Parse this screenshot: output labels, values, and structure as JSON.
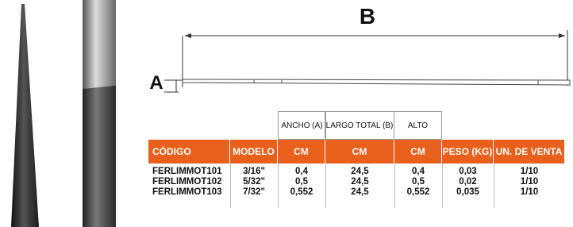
{
  "diagram": {
    "label_b": "B",
    "label_a": "A"
  },
  "table": {
    "top_headers": [
      "ANCHO (A)",
      "LARGO TOTAL (B)",
      "ALTO"
    ],
    "headers": [
      "CÓDIGO",
      "MODELO",
      "CM",
      "CM",
      "CM",
      "PESO (KG)",
      "UN. DE VENTA"
    ],
    "rows": [
      [
        "FERLIMMOT101",
        "3/16\"",
        "0,4",
        "24,5",
        "0,4",
        "0,03",
        "1/10"
      ],
      [
        "FERLIMMOT102",
        "5/32\"",
        "0,5",
        "24,5",
        "0,5",
        "0,02",
        "1/10"
      ],
      [
        "FERLIMMOT103",
        "7/32\"",
        "0,552",
        "24,5",
        "0,552",
        "0,035",
        "1/10"
      ]
    ]
  }
}
